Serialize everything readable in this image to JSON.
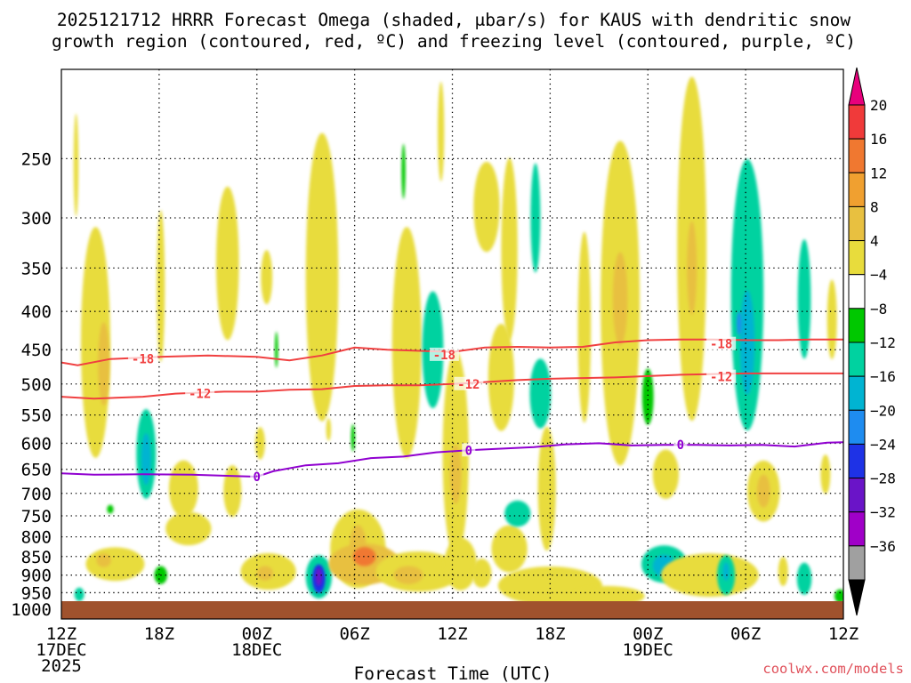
{
  "chart_data": {
    "type": "heatmap",
    "title_line1": "2025121712 HRRR Forecast Omega (shaded, μbar/s) for KAUS with dendritic snow",
    "title_line2": "growth region (contoured, red, ºC) and freezing level (contoured, purple, ºC)",
    "xlabel": "Forecast Time (UTC)",
    "credit": "coolwx.com/models",
    "x_range_hours": [
      0,
      48
    ],
    "y_range_hpa": [
      1030,
      190
    ],
    "x_ticks": [
      {
        "hour": 0,
        "label": "12Z",
        "date": "17DEC",
        "year": "2025"
      },
      {
        "hour": 6,
        "label": "18Z",
        "date": "",
        "year": ""
      },
      {
        "hour": 12,
        "label": "00Z",
        "date": "18DEC",
        "year": ""
      },
      {
        "hour": 18,
        "label": "06Z",
        "date": "",
        "year": ""
      },
      {
        "hour": 24,
        "label": "12Z",
        "date": "",
        "year": ""
      },
      {
        "hour": 30,
        "label": "18Z",
        "date": "",
        "year": ""
      },
      {
        "hour": 36,
        "label": "00Z",
        "date": "19DEC",
        "year": ""
      },
      {
        "hour": 42,
        "label": "06Z",
        "date": "",
        "year": ""
      },
      {
        "hour": 48,
        "label": "12Z",
        "date": "",
        "year": ""
      }
    ],
    "y_ticks": [
      250,
      300,
      350,
      400,
      450,
      500,
      550,
      600,
      650,
      700,
      750,
      800,
      850,
      900,
      950,
      1000
    ],
    "ground_top_hpa": 1000,
    "colorbar": {
      "labels": [
        20,
        16,
        12,
        8,
        4,
        -4,
        -8,
        -12,
        -16,
        -20,
        -24,
        -28,
        -32,
        -36
      ],
      "colors": [
        "#e8007c",
        "#f03a3a",
        "#f07830",
        "#f0a030",
        "#e8c040",
        "#e8dc3c",
        "#ffffff",
        "#00c800",
        "#00d2a0",
        "#00b4d2",
        "#1e8cf0",
        "#1e32e6",
        "#6a14c8",
        "#a000c8",
        "#a0a0a0",
        "#000000"
      ]
    },
    "series": [
      {
        "name": "-18",
        "type": "contour",
        "color": "#f04040",
        "points": [
          [
            0,
            468
          ],
          [
            1,
            472
          ],
          [
            3,
            463
          ],
          [
            6,
            460
          ],
          [
            9,
            458
          ],
          [
            12,
            460
          ],
          [
            14,
            465
          ],
          [
            16,
            458
          ],
          [
            18,
            447
          ],
          [
            20,
            450
          ],
          [
            24,
            453
          ],
          [
            26,
            447
          ],
          [
            28,
            446
          ],
          [
            30,
            447
          ],
          [
            32,
            446
          ],
          [
            34,
            440
          ],
          [
            36,
            437
          ],
          [
            38,
            436
          ],
          [
            40,
            436
          ],
          [
            42,
            437
          ],
          [
            44,
            437
          ],
          [
            46,
            436
          ],
          [
            48,
            436
          ]
        ],
        "labels": [
          [
            5,
            463
          ],
          [
            23.5,
            457
          ],
          [
            40.5,
            442
          ]
        ]
      },
      {
        "name": "-12",
        "type": "contour",
        "color": "#f04040",
        "points": [
          [
            0,
            520
          ],
          [
            2,
            523
          ],
          [
            5,
            520
          ],
          [
            7,
            515
          ],
          [
            10,
            512
          ],
          [
            12,
            512
          ],
          [
            14,
            509
          ],
          [
            16,
            508
          ],
          [
            18,
            503
          ],
          [
            20,
            502
          ],
          [
            22,
            502
          ],
          [
            24,
            500
          ],
          [
            26,
            497
          ],
          [
            28,
            494
          ],
          [
            30,
            492
          ],
          [
            32,
            491
          ],
          [
            34,
            490
          ],
          [
            36,
            488
          ],
          [
            38,
            486
          ],
          [
            40,
            485
          ],
          [
            42,
            484
          ],
          [
            44,
            484
          ],
          [
            46,
            484
          ],
          [
            48,
            484
          ]
        ],
        "labels": [
          [
            8.5,
            515
          ],
          [
            25,
            500
          ],
          [
            40.5,
            489
          ]
        ]
      },
      {
        "name": "0",
        "type": "contour",
        "color": "#9000d0",
        "points": [
          [
            0,
            658
          ],
          [
            2,
            661
          ],
          [
            5,
            660
          ],
          [
            8,
            661
          ],
          [
            11,
            664
          ],
          [
            12,
            665
          ],
          [
            13,
            654
          ],
          [
            15,
            642
          ],
          [
            17,
            638
          ],
          [
            19,
            628
          ],
          [
            21,
            625
          ],
          [
            23,
            617
          ],
          [
            25,
            613
          ],
          [
            27,
            610
          ],
          [
            29,
            607
          ],
          [
            31,
            602
          ],
          [
            33,
            600
          ],
          [
            35,
            604
          ],
          [
            37,
            603
          ],
          [
            39,
            603
          ],
          [
            41,
            604
          ],
          [
            43,
            603
          ],
          [
            45,
            606
          ],
          [
            47,
            599
          ],
          [
            48,
            598
          ]
        ],
        "labels": [
          [
            12,
            665
          ],
          [
            25,
            613
          ],
          [
            38,
            603
          ]
        ]
      }
    ],
    "regions": [
      {
        "h": 0.9,
        "p": 255,
        "v": 5,
        "hw": 0.15,
        "hp": 40
      },
      {
        "h": 2.1,
        "p": 440,
        "v": 6,
        "hw": 0.9,
        "hp": 150
      },
      {
        "h": 2.6,
        "p": 470,
        "v": 9,
        "hw": 0.35,
        "hp": 60
      },
      {
        "h": 5.2,
        "p": 620,
        "v": -10,
        "hw": 0.6,
        "hp": 85
      },
      {
        "h": 5.2,
        "p": 630,
        "v": -13,
        "hw": 0.3,
        "hp": 50
      },
      {
        "h": 6.1,
        "p": 370,
        "v": 5,
        "hw": 0.25,
        "hp": 85
      },
      {
        "h": 10.2,
        "p": 345,
        "v": 5,
        "hw": 0.7,
        "hp": 80
      },
      {
        "h": 10.5,
        "p": 695,
        "v": 6,
        "hw": 0.55,
        "hp": 55
      },
      {
        "h": 12.6,
        "p": 360,
        "v": 5,
        "hw": 0.35,
        "hp": 30
      },
      {
        "h": 16,
        "p": 360,
        "v": 6,
        "hw": 1.0,
        "hp": 150
      },
      {
        "h": 13.2,
        "p": 450,
        "v": -7,
        "hw": 0.1,
        "hp": 25
      },
      {
        "h": 18.2,
        "p": 830,
        "v": 5,
        "hw": 1.7,
        "hp": 100
      },
      {
        "h": 18.2,
        "p": 820,
        "v": 11,
        "hw": 0.5,
        "hp": 50
      },
      {
        "h": 21.2,
        "p": 440,
        "v": 6,
        "hw": 0.9,
        "hp": 150
      },
      {
        "h": 21,
        "p": 260,
        "v": -6,
        "hw": 0.12,
        "hp": 22
      },
      {
        "h": 22.8,
        "p": 450,
        "v": -9,
        "hw": 0.65,
        "hp": 80
      },
      {
        "h": 23.3,
        "p": 230,
        "v": 5,
        "hw": 0.2,
        "hp": 35
      },
      {
        "h": 24.2,
        "p": 620,
        "v": 6,
        "hw": 0.8,
        "hp": 190
      },
      {
        "h": 24.2,
        "p": 660,
        "v": 10,
        "hw": 0.35,
        "hp": 60
      },
      {
        "h": 26.1,
        "p": 290,
        "v": 5,
        "hw": 0.8,
        "hp": 40
      },
      {
        "h": 27.5,
        "p": 330,
        "v": 6,
        "hw": 0.5,
        "hp": 90
      },
      {
        "h": 27,
        "p": 490,
        "v": 5,
        "hw": 0.8,
        "hp": 80
      },
      {
        "h": 29.1,
        "p": 300,
        "v": -8,
        "hw": 0.3,
        "hp": 50
      },
      {
        "h": 29.4,
        "p": 515,
        "v": -10,
        "hw": 0.65,
        "hp": 55
      },
      {
        "h": 29.8,
        "p": 690,
        "v": 6,
        "hw": 0.55,
        "hp": 130
      },
      {
        "h": 32.1,
        "p": 420,
        "v": 5,
        "hw": 0.4,
        "hp": 120
      },
      {
        "h": 34.3,
        "p": 390,
        "v": 6,
        "hw": 1.2,
        "hp": 180
      },
      {
        "h": 34.3,
        "p": 385,
        "v": 11,
        "hw": 0.45,
        "hp": 55
      },
      {
        "h": 37.1,
        "p": 660,
        "v": 5,
        "hw": 0.8,
        "hp": 50
      },
      {
        "h": 36,
        "p": 520,
        "v": -7,
        "hw": 0.35,
        "hp": 45
      },
      {
        "h": 38.7,
        "p": 330,
        "v": 7,
        "hw": 0.9,
        "hp": 160
      },
      {
        "h": 38.7,
        "p": 350,
        "v": 11,
        "hw": 0.3,
        "hp": 50
      },
      {
        "h": 42.1,
        "p": 380,
        "v": -10,
        "hw": 1.0,
        "hp": 150
      },
      {
        "h": 42.1,
        "p": 440,
        "v": -14,
        "hw": 0.45,
        "hp": 70
      },
      {
        "h": 41.6,
        "p": 415,
        "v": -17,
        "hw": 0.15,
        "hp": 15
      },
      {
        "h": 43.1,
        "p": 695,
        "v": 6,
        "hw": 1.0,
        "hp": 65
      },
      {
        "h": 43.1,
        "p": 695,
        "v": 10,
        "hw": 0.4,
        "hp": 35
      },
      {
        "h": 45.6,
        "p": 385,
        "v": -8,
        "hw": 0.4,
        "hp": 70
      },
      {
        "h": 47.3,
        "p": 410,
        "v": 5,
        "hw": 0.3,
        "hp": 50
      },
      {
        "h": 46.9,
        "p": 660,
        "v": 5,
        "hw": 0.3,
        "hp": 40
      },
      {
        "h": 3.3,
        "p": 870,
        "v": 6,
        "hw": 1.8,
        "hp": 45
      },
      {
        "h": 7.8,
        "p": 780,
        "v": 5,
        "hw": 1.4,
        "hp": 40
      },
      {
        "h": 12.7,
        "p": 890,
        "v": 5,
        "hw": 1.7,
        "hp": 50
      },
      {
        "h": 12.5,
        "p": 895,
        "v": 9,
        "hw": 0.5,
        "hp": 20
      },
      {
        "h": 15.8,
        "p": 905,
        "v": -10,
        "hw": 0.8,
        "hp": 60
      },
      {
        "h": 15.8,
        "p": 910,
        "v": -20,
        "hw": 0.4,
        "hp": 40
      },
      {
        "h": 15.8,
        "p": 905,
        "v": -27,
        "hw": 0.2,
        "hp": 25
      },
      {
        "h": 18.6,
        "p": 870,
        "v": 8,
        "hw": 2.2,
        "hp": 55
      },
      {
        "h": 18.6,
        "p": 850,
        "v": 13,
        "hw": 0.7,
        "hp": 25
      },
      {
        "h": 21.9,
        "p": 890,
        "v": 6,
        "hw": 2.6,
        "hp": 55
      },
      {
        "h": 21.3,
        "p": 900,
        "v": 9,
        "hw": 0.9,
        "hp": 25
      },
      {
        "h": 24.5,
        "p": 870,
        "v": 5,
        "hw": 1.0,
        "hp": 70
      },
      {
        "h": 30,
        "p": 930,
        "v": 5,
        "hw": 3.2,
        "hp": 55
      },
      {
        "h": 27.5,
        "p": 830,
        "v": 6,
        "hw": 1.1,
        "hp": 60
      },
      {
        "h": 25.8,
        "p": 895,
        "v": 5,
        "hw": 0.6,
        "hp": 40
      },
      {
        "h": 37,
        "p": 870,
        "v": -9,
        "hw": 1.4,
        "hp": 50
      },
      {
        "h": 37,
        "p": 875,
        "v": -13,
        "hw": 0.7,
        "hp": 30
      },
      {
        "h": 39.8,
        "p": 900,
        "v": 5,
        "hw": 3.0,
        "hp": 60
      },
      {
        "h": 40.8,
        "p": 900,
        "v": -9,
        "hw": 0.55,
        "hp": 55
      },
      {
        "h": 40.8,
        "p": 890,
        "v": -13,
        "hw": 0.2,
        "hp": 25
      },
      {
        "h": 28,
        "p": 745,
        "v": -8,
        "hw": 0.8,
        "hp": 30
      },
      {
        "h": 33.5,
        "p": 960,
        "v": 5,
        "hw": 2.3,
        "hp": 30
      },
      {
        "h": 44.3,
        "p": 890,
        "v": 5,
        "hw": 0.3,
        "hp": 40
      },
      {
        "h": 45.6,
        "p": 910,
        "v": -8,
        "hw": 0.45,
        "hp": 45
      },
      {
        "h": 1.1,
        "p": 955,
        "v": -8,
        "hw": 0.3,
        "hp": 20
      },
      {
        "h": 47.8,
        "p": 960,
        "v": -7,
        "hw": 0.35,
        "hp": 20
      },
      {
        "h": 6.1,
        "p": 900,
        "v": -7,
        "hw": 0.4,
        "hp": 25
      },
      {
        "h": 3.0,
        "p": 735,
        "v": -6,
        "hw": 0.2,
        "hp": 10
      },
      {
        "h": 17.9,
        "p": 590,
        "v": -6,
        "hw": 0.12,
        "hp": 25
      },
      {
        "h": 16.4,
        "p": 575,
        "v": 5,
        "hw": 0.15,
        "hp": 20
      },
      {
        "h": 7.5,
        "p": 690,
        "v": 5,
        "hw": 0.9,
        "hp": 60
      },
      {
        "h": 12.2,
        "p": 600,
        "v": 5,
        "hw": 0.3,
        "hp": 30
      },
      {
        "h": 2.6,
        "p": 860,
        "v": 10,
        "hw": 0.45,
        "hp": 18
      }
    ]
  }
}
